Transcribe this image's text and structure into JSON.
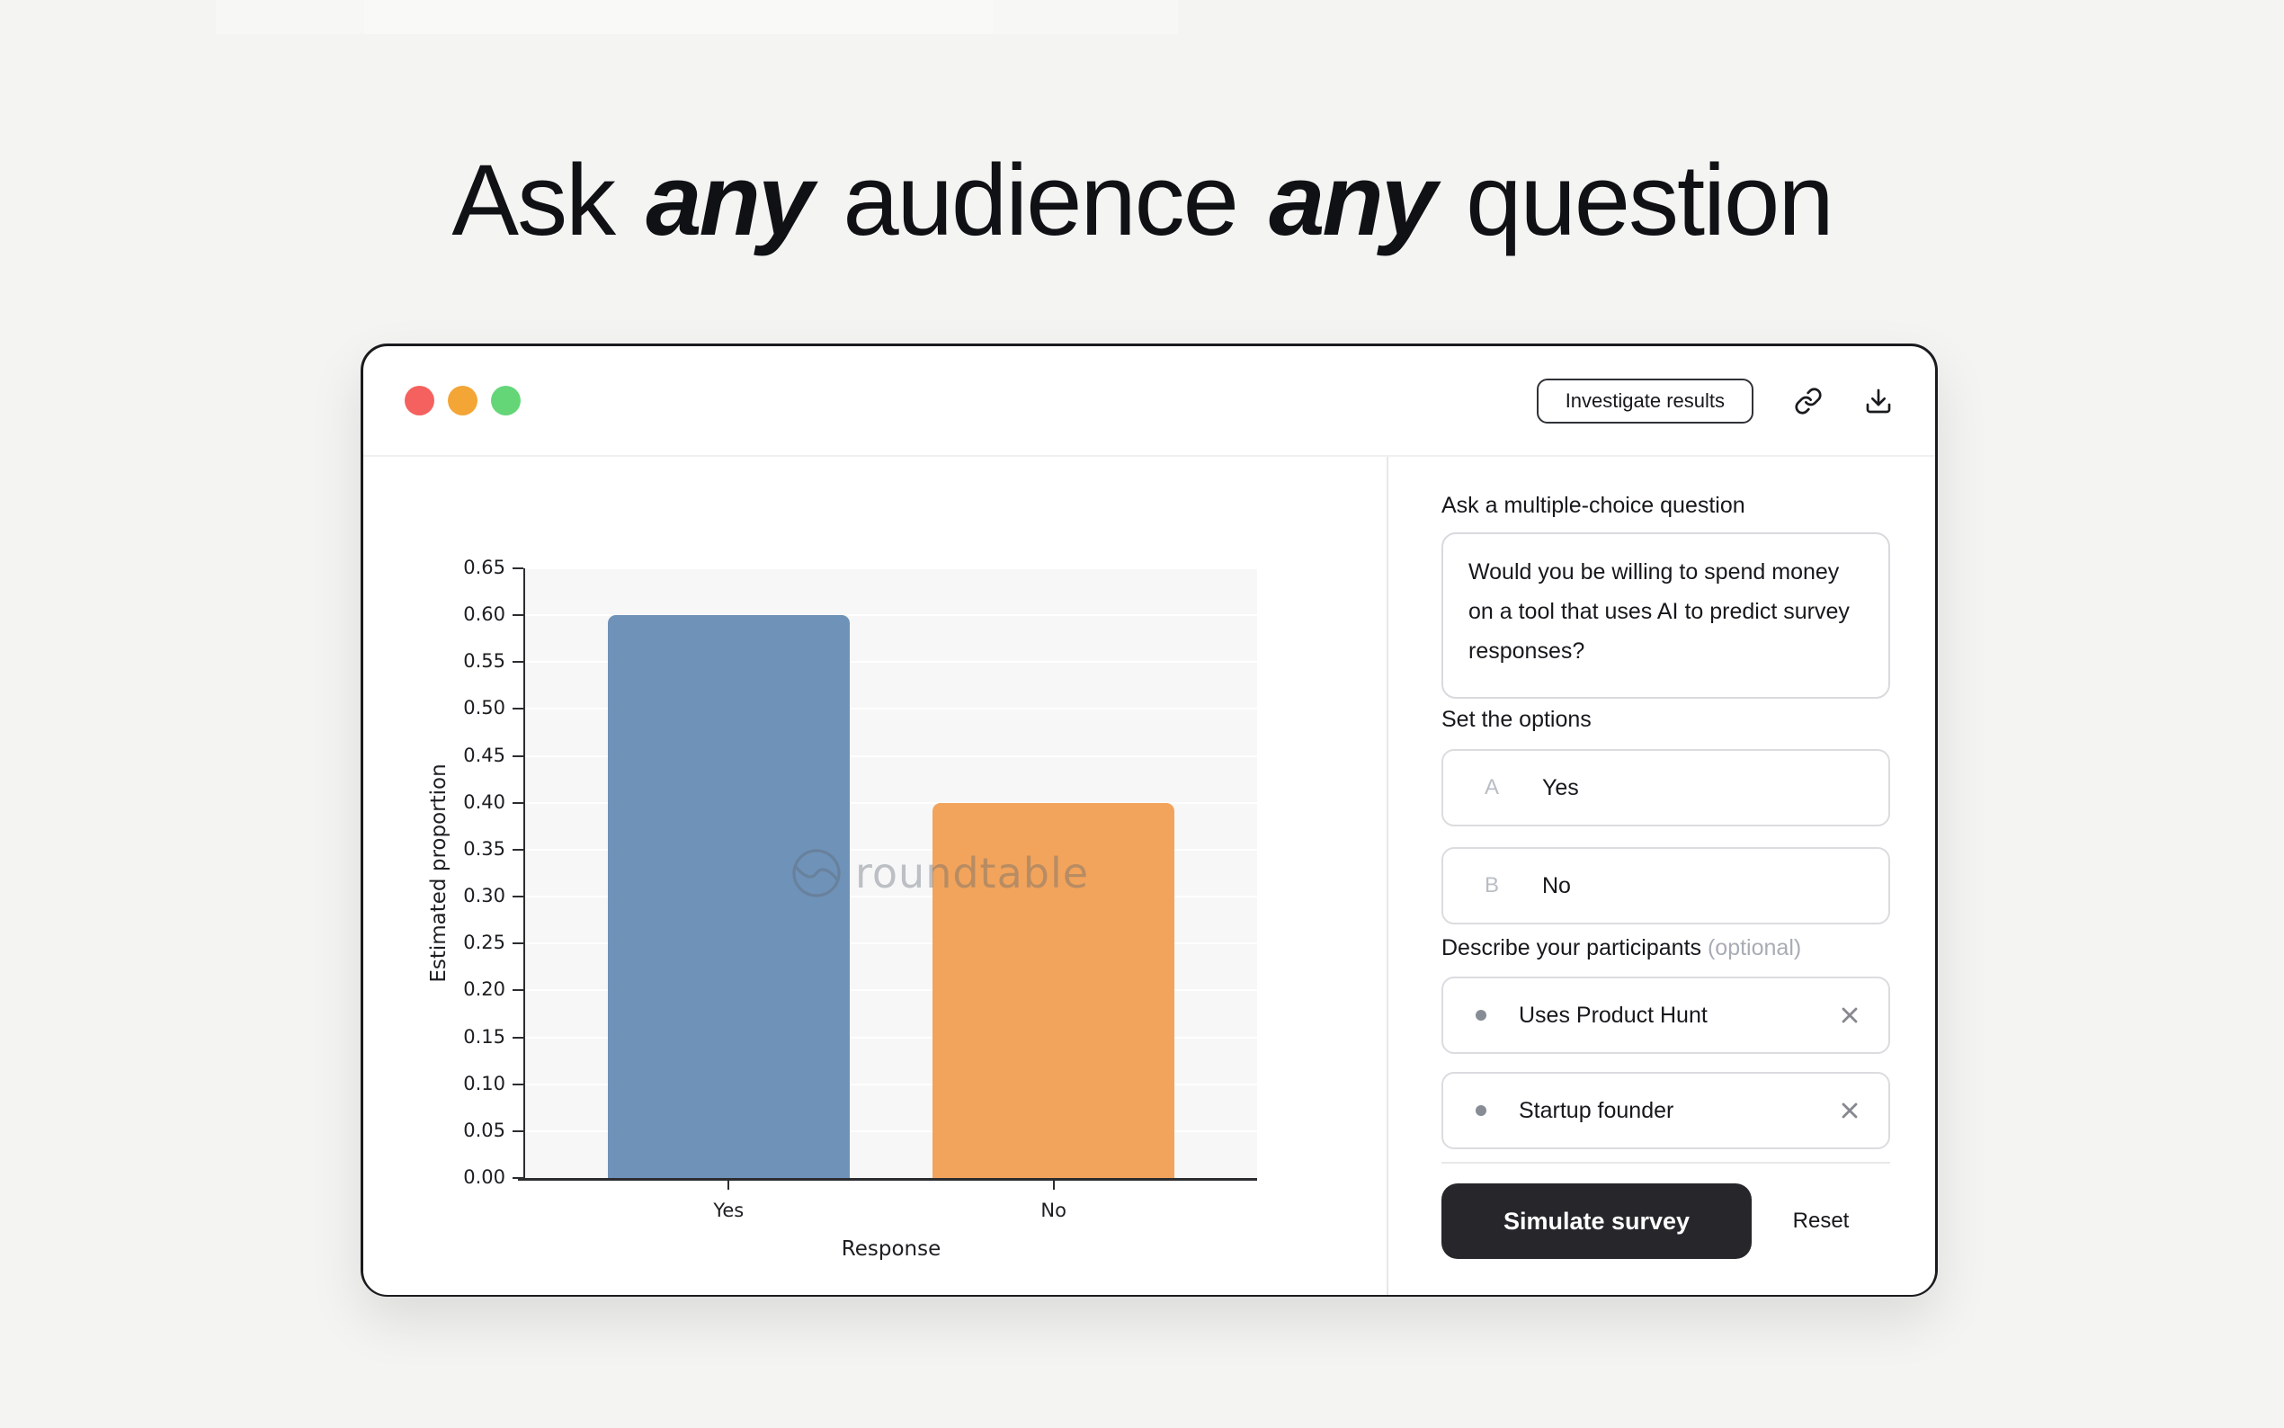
{
  "headline": {
    "parts": [
      {
        "text": "Ask ",
        "emphasis": false
      },
      {
        "text": "any",
        "emphasis": true
      },
      {
        "text": " audience ",
        "emphasis": false
      },
      {
        "text": "any",
        "emphasis": true
      },
      {
        "text": " question",
        "emphasis": false
      }
    ]
  },
  "window": {
    "traffic_lights": [
      "#f4615e",
      "#f3a536",
      "#65d678"
    ],
    "header": {
      "investigate_button": "Investigate results"
    }
  },
  "chart_data": {
    "type": "bar",
    "categories": [
      "Yes",
      "No"
    ],
    "values": [
      0.6,
      0.4
    ],
    "colors": [
      "#6f92b8",
      "#f2a45c"
    ],
    "title": "",
    "xlabel": "Response",
    "ylabel": "Estimated proportion",
    "ylim": [
      0,
      0.65
    ],
    "ytick_step": 0.05,
    "grid": true,
    "legend": false
  },
  "watermark": {
    "text": "roundtable"
  },
  "form": {
    "question_label": "Ask a multiple-choice question",
    "question_value": "Would you be willing to spend money on a tool that uses AI to predict survey responses?",
    "options_label": "Set the options",
    "options": [
      {
        "key": "A",
        "value": "Yes"
      },
      {
        "key": "B",
        "value": "No"
      }
    ],
    "participants_label": "Describe your participants",
    "participants_optional": "(optional)",
    "participants": [
      "Uses Product Hunt",
      "Startup founder"
    ],
    "simulate_button": "Simulate survey",
    "reset_button": "Reset",
    "simulate_bg": "#26262b"
  }
}
